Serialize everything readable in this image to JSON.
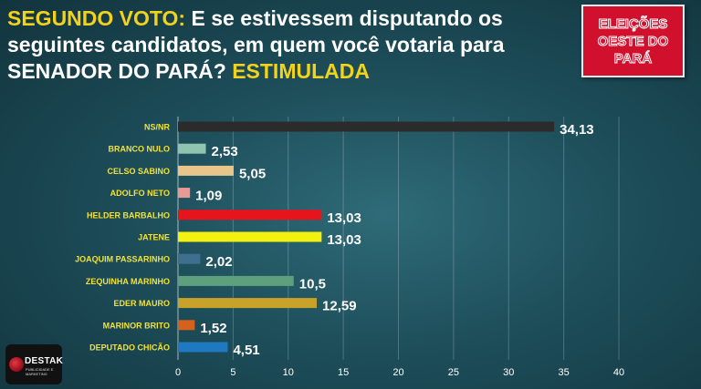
{
  "header": {
    "title_prefix": "SEGUNDO VOTO:",
    "title_main": " E se estivessem disputando os seguintes candidatos, em quem você votaria para SENADOR DO PARÁ?",
    "title_suffix": " ESTIMULADA"
  },
  "badge": {
    "lines": [
      "ELEIÇÕES",
      "OESTE DO",
      "PARÁ"
    ]
  },
  "logo": {
    "name": "DESTAK",
    "sub": "PUBLICIDADE E MARKETING"
  },
  "colors": {
    "accent": "#f2d21b",
    "badge_bg": "#d0102d"
  },
  "chart_data": {
    "type": "bar",
    "orientation": "horizontal",
    "categories": [
      "NS/NR",
      "BRANCO NULO",
      "CELSO SABINO",
      "ADOLFO NETO",
      "HELDER BARBALHO",
      "JATENE",
      "JOAQUIM PASSARINHO",
      "ZEQUINHA MARINHO",
      "EDER MAURO",
      "MARINOR BRITO",
      "DEPUTADO CHICÃO"
    ],
    "values": [
      34.13,
      2.53,
      5.05,
      1.09,
      13.03,
      13.03,
      2.02,
      10.5,
      12.59,
      1.52,
      4.51
    ],
    "value_labels": [
      "34,13",
      "2,53",
      "5,05",
      "1,09",
      "13,03",
      "13,03",
      "2,02",
      "10,5",
      "12,59",
      "1,52",
      "4,51"
    ],
    "colors": [
      "#2b2b2b",
      "#8fc5b0",
      "#e8c58a",
      "#e99a94",
      "#e8141c",
      "#f3f20f",
      "#3e6f8e",
      "#5ea07e",
      "#c9a22a",
      "#d4621c",
      "#1f79c0"
    ],
    "xlim": [
      0,
      40
    ],
    "xticks": [
      0,
      5,
      10,
      15,
      20,
      25,
      30,
      35,
      40
    ],
    "grid": true
  }
}
